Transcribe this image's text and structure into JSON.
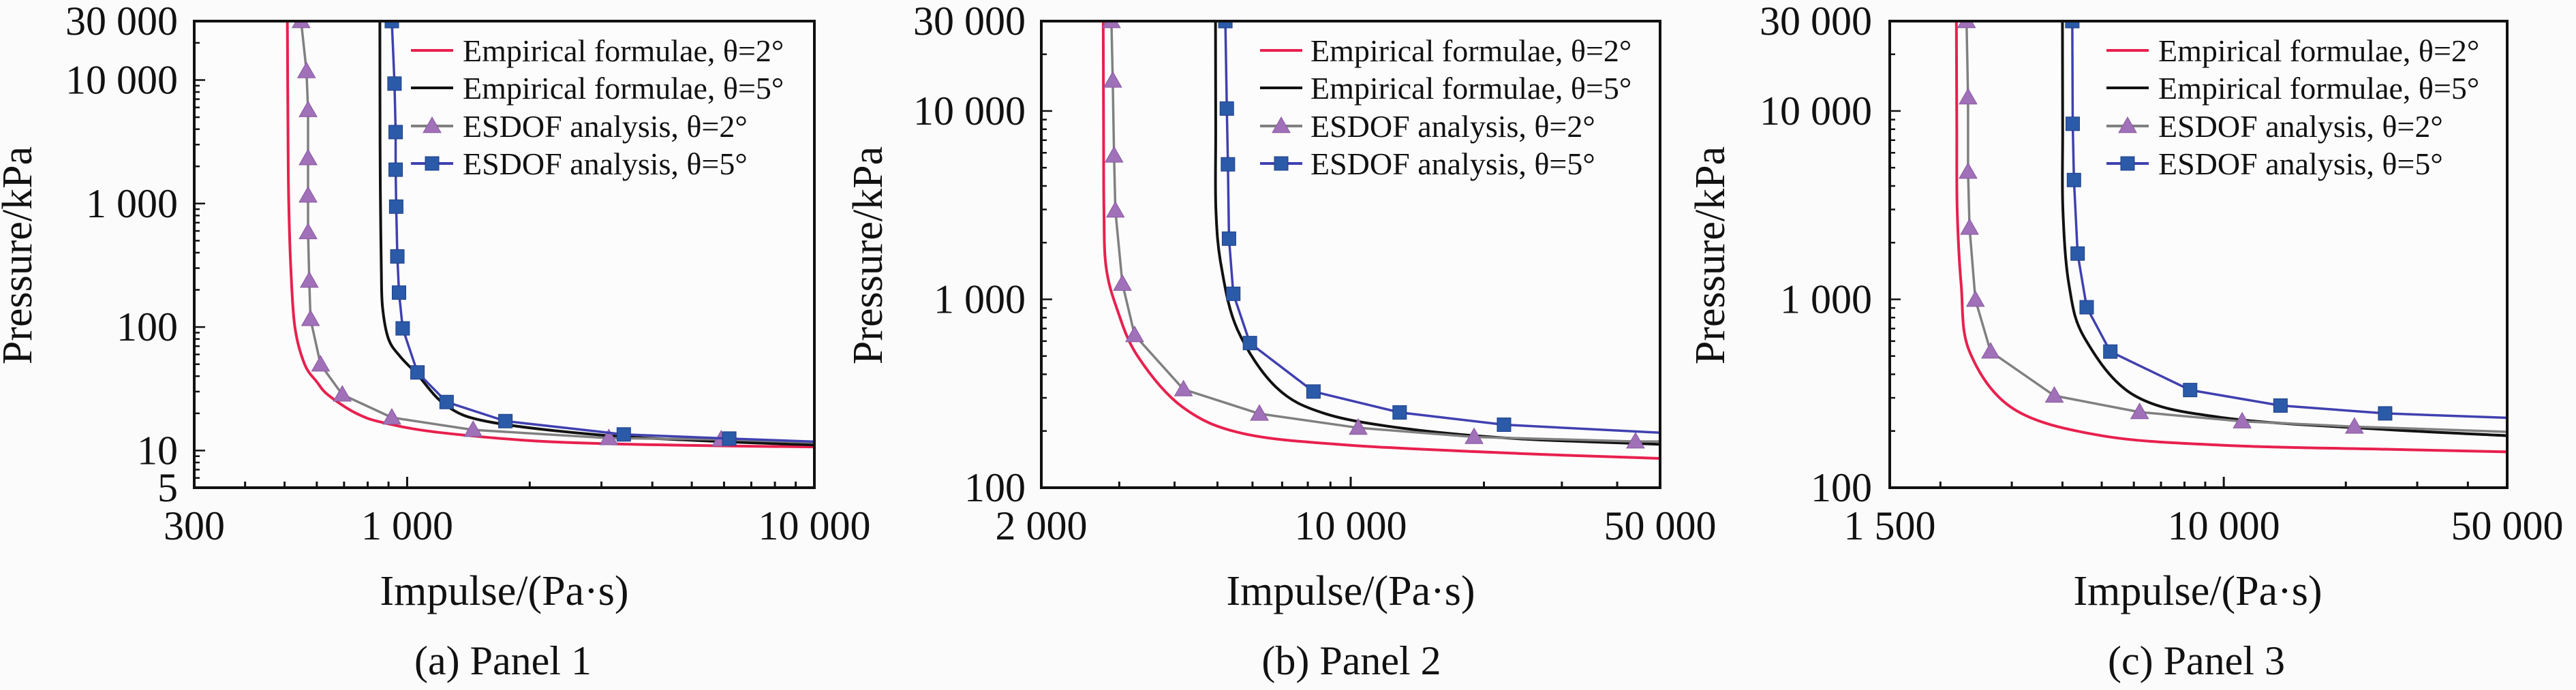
{
  "colors": {
    "empirical_2": "#e8204e",
    "empirical_5": "#111111",
    "esdof_2_line": "#808080",
    "esdof_2_marker": "#a070b8",
    "esdof_5_line": "#4040b0",
    "esdof_5_marker": "#2b5aa8"
  },
  "chart_data": [
    {
      "type": "line",
      "caption": "(a) Panel 1",
      "xlabel": "Impulse/(Pa·s)",
      "ylabel": "Pressure/kPa",
      "xscale": "log",
      "yscale": "log",
      "xlim": [
        300,
        10000
      ],
      "ylim": [
        5,
        30000
      ],
      "xticks": [
        {
          "v": 300,
          "label": "300"
        },
        {
          "v": 1000,
          "label": "1 000"
        },
        {
          "v": 10000,
          "label": "10 000"
        }
      ],
      "yticks": [
        {
          "v": 5,
          "label": "5"
        },
        {
          "v": 10,
          "label": "10"
        },
        {
          "v": 100,
          "label": "100"
        },
        {
          "v": 1000,
          "label": "1 000"
        },
        {
          "v": 10000,
          "label": "10 000"
        },
        {
          "v": 30000,
          "label": "30 000"
        }
      ],
      "legend_position": "top-right",
      "series": [
        {
          "name": "Empirical formulae, θ=2°",
          "style": "empirical_2",
          "marker": "none",
          "points": [
            [
              508,
              30000
            ],
            [
              510,
              3000
            ],
            [
              512,
              1000
            ],
            [
              518,
              300
            ],
            [
              530,
              100
            ],
            [
              560,
              50
            ],
            [
              600,
              36
            ],
            [
              641,
              28
            ],
            [
              750,
              20
            ],
            [
              875,
              16.8
            ],
            [
              1200,
              14
            ],
            [
              2218,
              11.8
            ],
            [
              5000,
              11
            ],
            [
              10000,
              10.7
            ]
          ]
        },
        {
          "name": "Empirical formulae, θ=5°",
          "style": "empirical_5",
          "marker": "none",
          "points": [
            [
              857,
              30000
            ],
            [
              858,
              3000
            ],
            [
              860,
              1000
            ],
            [
              864,
              300
            ],
            [
              870,
              145
            ],
            [
              900,
              80
            ],
            [
              960,
              58
            ],
            [
              1054,
              42
            ],
            [
              1250,
              23
            ],
            [
              1600,
              17
            ],
            [
              3030,
              13.3
            ],
            [
              6000,
              11.8
            ],
            [
              10000,
              11.1
            ]
          ]
        },
        {
          "name": "ESDOF analysis, θ=2°",
          "style": "esdof_2",
          "marker": "triangle",
          "points": [
            [
              549,
              30000
            ],
            [
              566,
              11800
            ],
            [
              571,
              5710
            ],
            [
              571,
              2330
            ],
            [
              571,
              1160
            ],
            [
              571,
              586
            ],
            [
              575,
              237
            ],
            [
              579,
              116
            ],
            [
              613,
              49.7
            ],
            [
              693,
              28.4
            ],
            [
              917,
              18.5
            ],
            [
              1452,
              14.7
            ],
            [
              3127,
              12.6
            ],
            [
              5902,
              12.3
            ],
            [
              10000,
              11.6
            ]
          ]
        },
        {
          "name": "ESDOF analysis, θ=5°",
          "style": "esdof_5",
          "marker": "square",
          "points": [
            [
              917,
              30000
            ],
            [
              931,
              9360
            ],
            [
              937,
              3790
            ],
            [
              937,
              1880
            ],
            [
              940,
              944
            ],
            [
              946,
              373
            ],
            [
              955,
              190
            ],
            [
              975,
              97.5
            ],
            [
              1060,
              42.9
            ],
            [
              1250,
              24.7
            ],
            [
              1743,
              17.3
            ],
            [
              3404,
              13.5
            ],
            [
              6180,
              12.5
            ],
            [
              10000,
              11.8
            ]
          ]
        }
      ]
    },
    {
      "type": "line",
      "caption": "(b) Panel 2",
      "xlabel": "Impulse/(Pa·s)",
      "ylabel": "Pressure/kPa",
      "xscale": "log",
      "yscale": "log",
      "xlim": [
        2000,
        50000
      ],
      "ylim": [
        100,
        30000
      ],
      "xticks": [
        {
          "v": 2000,
          "label": "2 000"
        },
        {
          "v": 10000,
          "label": "10 000"
        },
        {
          "v": 50000,
          "label": "50 000"
        }
      ],
      "yticks": [
        {
          "v": 100,
          "label": "100"
        },
        {
          "v": 1000,
          "label": "1 000"
        },
        {
          "v": 10000,
          "label": "10 000"
        },
        {
          "v": 30000,
          "label": "30 000"
        }
      ],
      "legend_position": "top-right",
      "series": [
        {
          "name": "Empirical formulae, θ=2°",
          "style": "empirical_2",
          "marker": "none",
          "points": [
            [
              2760,
              30000
            ],
            [
              2765,
              8000
            ],
            [
              2770,
              3000
            ],
            [
              2800,
              1500
            ],
            [
              2960,
              900
            ],
            [
              3300,
              500
            ],
            [
              4170,
              268
            ],
            [
              5710,
              194
            ],
            [
              10000,
              168
            ],
            [
              23900,
              152
            ],
            [
              50000,
              143
            ]
          ]
        },
        {
          "name": "Empirical formulae, θ=5°",
          "style": "empirical_5",
          "marker": "none",
          "points": [
            [
              4950,
              30000
            ],
            [
              4955,
              8000
            ],
            [
              4960,
              3000
            ],
            [
              5100,
              1500
            ],
            [
              5550,
              689
            ],
            [
              6780,
              342
            ],
            [
              8770,
              247
            ],
            [
              13500,
              205
            ],
            [
              23900,
              182
            ],
            [
              50000,
              170
            ]
          ]
        },
        {
          "name": "ESDOF analysis, θ=2°",
          "style": "esdof_2",
          "marker": "triangle",
          "points": [
            [
              2880,
              30000
            ],
            [
              2900,
              14500
            ],
            [
              2920,
              5800
            ],
            [
              2940,
              2960
            ],
            [
              3050,
              1210
            ],
            [
              3250,
              646
            ],
            [
              4190,
              333
            ],
            [
              6220,
              247
            ],
            [
              10400,
              208
            ],
            [
              19000,
              186
            ],
            [
              44000,
              176
            ],
            [
              50000,
              176
            ]
          ]
        },
        {
          "name": "ESDOF analysis, θ=5°",
          "style": "esdof_5",
          "marker": "square",
          "points": [
            [
              5210,
              30000
            ],
            [
              5250,
              10300
            ],
            [
              5280,
              5210
            ],
            [
              5310,
              2100
            ],
            [
              5430,
              1070
            ],
            [
              5920,
              586
            ],
            [
              8240,
              324
            ],
            [
              12900,
              251
            ],
            [
              22200,
              216
            ],
            [
              49700,
              196
            ]
          ]
        }
      ]
    },
    {
      "type": "line",
      "caption": "(c) Panel 3",
      "xlabel": "Impulse/(Pa·s)",
      "ylabel": "Pressure/kPa",
      "xscale": "log",
      "yscale": "log",
      "xlim": [
        1500,
        50000
      ],
      "ylim": [
        100,
        30000
      ],
      "xticks": [
        {
          "v": 1500,
          "label": "1 500"
        },
        {
          "v": 10000,
          "label": "10 000"
        },
        {
          "v": 50000,
          "label": "50 000"
        }
      ],
      "yticks": [
        {
          "v": 100,
          "label": "100"
        },
        {
          "v": 1000,
          "label": "1 000"
        },
        {
          "v": 10000,
          "label": "10 000"
        },
        {
          "v": 30000,
          "label": "30 000"
        }
      ],
      "legend_position": "top-right",
      "series": [
        {
          "name": "Empirical formulae, θ=2°",
          "style": "empirical_2",
          "marker": "none",
          "points": [
            [
              2190,
              30000
            ],
            [
              2195,
              8000
            ],
            [
              2200,
              3000
            ],
            [
              2250,
              1200
            ],
            [
              2360,
              528
            ],
            [
              3030,
              262
            ],
            [
              4990,
              189
            ],
            [
              10000,
              168
            ],
            [
              25000,
              160
            ],
            [
              50000,
              155
            ]
          ]
        },
        {
          "name": "Empirical formulae, θ=5°",
          "style": "empirical_5",
          "marker": "none",
          "points": [
            [
              4000,
              30000
            ],
            [
              4005,
              8000
            ],
            [
              4010,
              3000
            ],
            [
              4150,
              1200
            ],
            [
              4540,
              621
            ],
            [
              6030,
              308
            ],
            [
              10000,
              235
            ],
            [
              23800,
              205
            ],
            [
              50000,
              189
            ]
          ]
        },
        {
          "name": "ESDOF analysis, θ=2°",
          "style": "esdof_2",
          "marker": "triangle",
          "points": [
            [
              2320,
              30000
            ],
            [
              2340,
              11800
            ],
            [
              2340,
              4760
            ],
            [
              2360,
              2400
            ],
            [
              2440,
              995
            ],
            [
              2660,
              528
            ],
            [
              3820,
              308
            ],
            [
              6200,
              252
            ],
            [
              11100,
              225
            ],
            [
              21000,
              211
            ],
            [
              50000,
              198
            ]
          ]
        },
        {
          "name": "ESDOF analysis, θ=5°",
          "style": "esdof_5",
          "marker": "square",
          "points": [
            [
              4230,
              30000
            ],
            [
              4240,
              8550
            ],
            [
              4270,
              4300
            ],
            [
              4360,
              1750
            ],
            [
              4590,
              908
            ],
            [
              5250,
              528
            ],
            [
              8260,
              330
            ],
            [
              13800,
              273
            ],
            [
              25000,
              248
            ],
            [
              50000,
              235
            ]
          ]
        }
      ]
    }
  ]
}
